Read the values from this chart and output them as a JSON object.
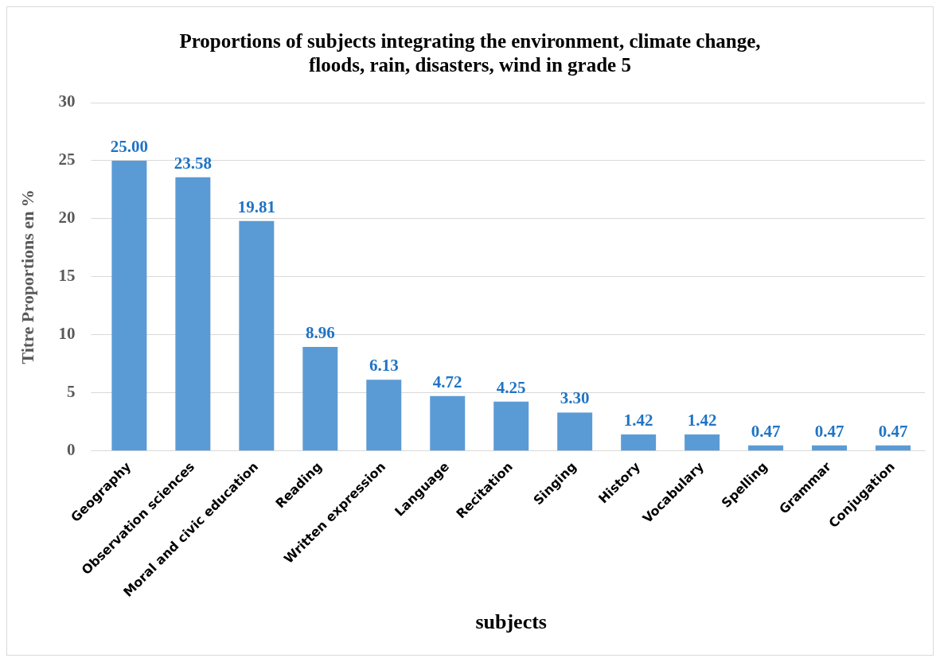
{
  "chart_data": {
    "type": "bar",
    "title": [
      "Proportions of subjects integrating the environment, climate change,",
      "floods, rain, disasters, wind in grade 5"
    ],
    "xlabel": "subjects",
    "ylabel": "Titre Proportions en %",
    "categories": [
      "Geography",
      "Observation sciences",
      "Moral and civic education",
      "Reading",
      "Written expression",
      "Language",
      "Recitation",
      "Singing",
      "History",
      "Vocabulary",
      "Spelling",
      "Grammar",
      "Conjugation"
    ],
    "values": [
      25.0,
      23.58,
      19.81,
      8.96,
      6.13,
      4.72,
      4.25,
      3.3,
      1.42,
      1.42,
      0.47,
      0.47,
      0.47
    ],
    "value_labels": [
      "25.00",
      "23.58",
      "19.81",
      "8.96",
      "6.13",
      "4.72",
      "4.25",
      "3.30",
      "1.42",
      "1.42",
      "0.47",
      "0.47",
      "0.47"
    ],
    "color": "#5b9bd5",
    "ylim": [
      0,
      30
    ],
    "yticks": [
      0,
      5,
      10,
      15,
      20,
      25,
      30
    ],
    "grid": "y",
    "legend": false
  }
}
